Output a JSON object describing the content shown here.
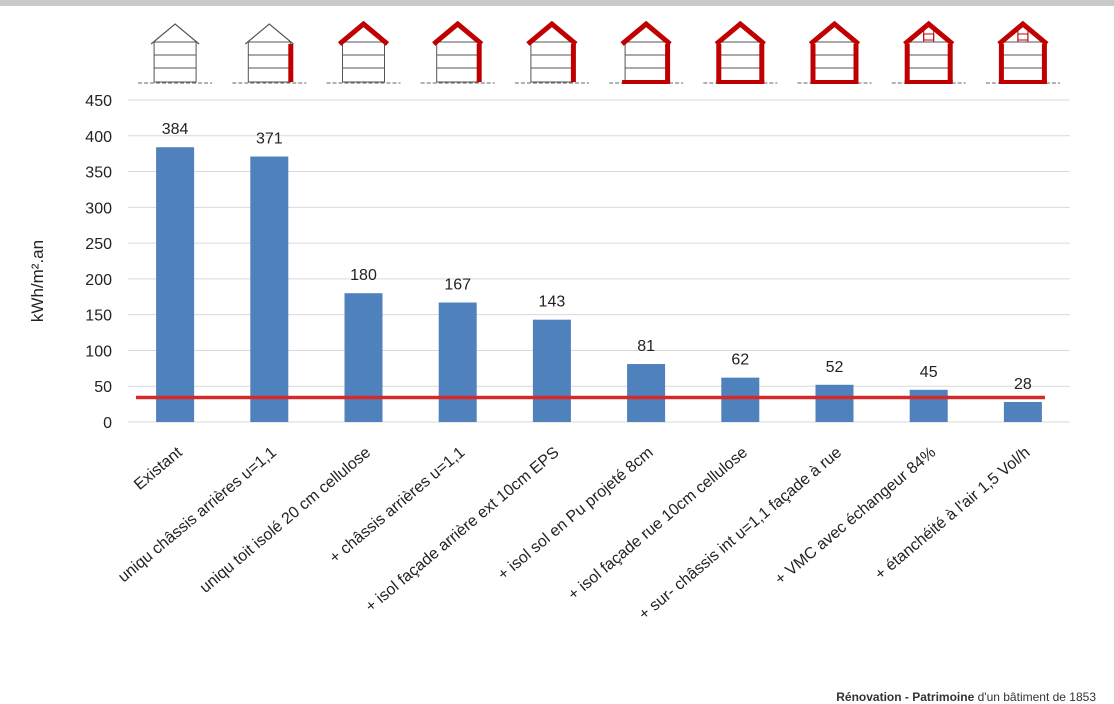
{
  "chart_data": {
    "type": "bar",
    "categories": [
      "Existant",
      "uniqu châssis arrières   u=1,1",
      "uniqu toit isolé 20 cm cellulose",
      "+ châssis arrières  u=1,1",
      "+ isol façade arrière ext 10cm EPS",
      "+ isol sol en Pu projeté 8cm",
      "+ isol façade rue 10cm cellulose",
      "+ sur- châssis int u=1,1  façade à rue",
      "+ VMC avec échangeur 84%",
      "+ étanchéité à l'air 1,5 Vol/h"
    ],
    "values": [
      384,
      371,
      180,
      167,
      143,
      81,
      62,
      52,
      45,
      28
    ],
    "data_labels": [
      "384",
      "371",
      "180",
      "167",
      "143",
      "81",
      "62",
      "52",
      "45",
      "28"
    ],
    "ylabel": "kWh/m².an",
    "ylim": [
      0,
      450
    ],
    "yticks": [
      0,
      50,
      100,
      150,
      200,
      250,
      300,
      350,
      400,
      450
    ],
    "reference_line": 35,
    "grid": true,
    "bar_color": "#4f81bd",
    "line_color": "#d42a2a",
    "house_icons": [
      "house-icon",
      "house-icon",
      "house-icon",
      "house-icon",
      "house-icon",
      "house-icon",
      "house-icon",
      "house-icon",
      "house-icon",
      "house-icon"
    ]
  },
  "footer": {
    "bold": "Rénovation - Patrimoine",
    "rest": " d'un bâtiment de 1853"
  }
}
